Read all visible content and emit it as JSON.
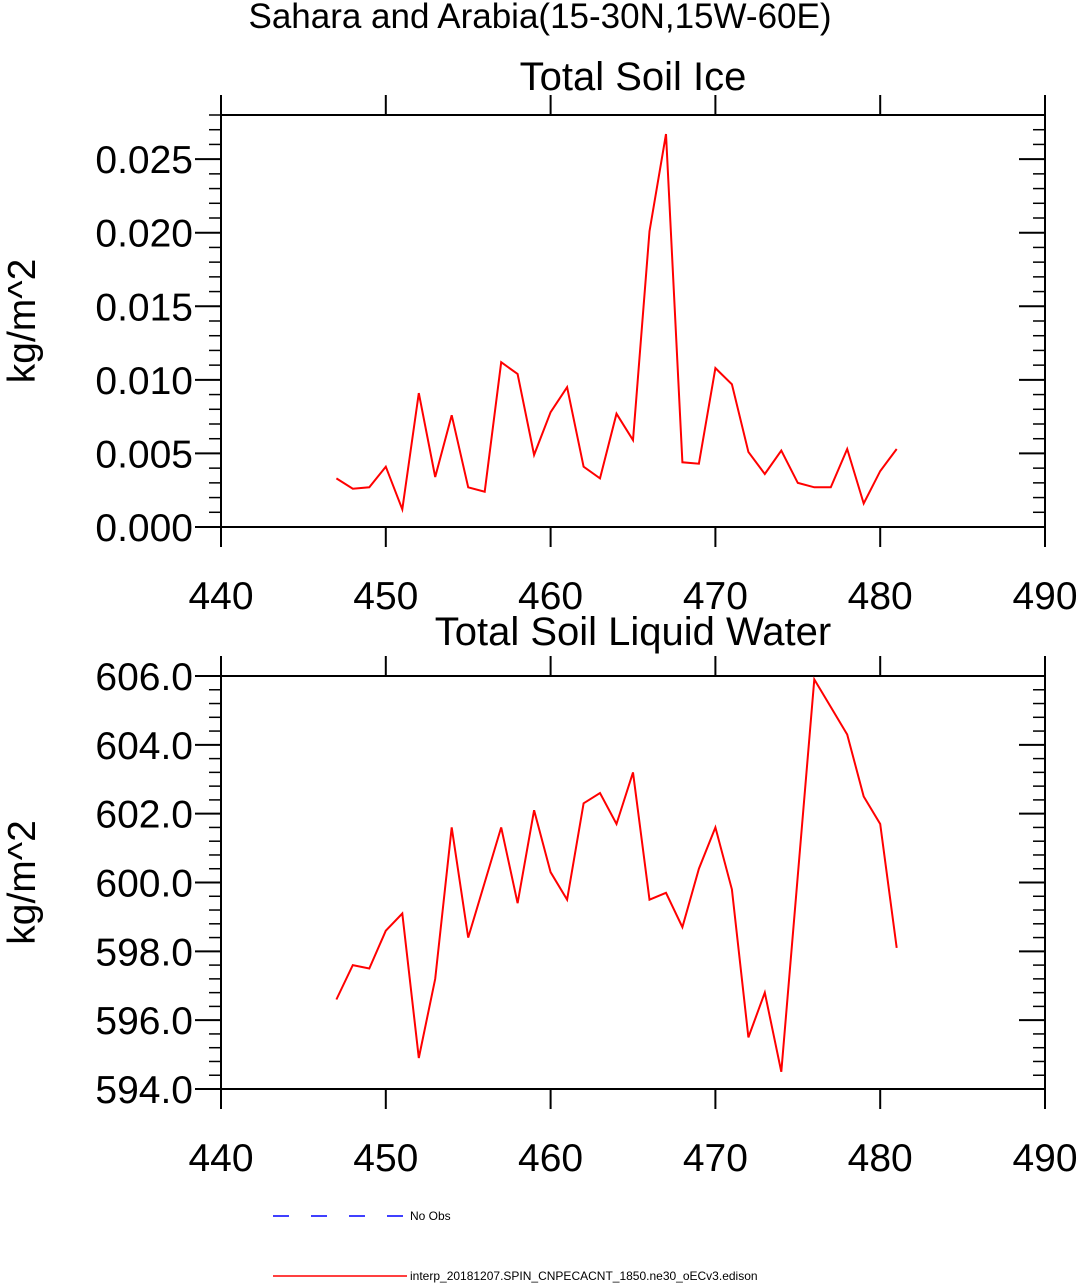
{
  "figure_title": "Sahara and Arabia(15-30N,15W-60E)",
  "colors": {
    "model": "#ff0000",
    "obs": "#0000ff",
    "axes": "#000000"
  },
  "legend": {
    "obs_label": "No Obs",
    "model_label": "interp_20181207.SPIN_CNPECACNT_1850.ne30_oECv3.edison"
  },
  "chart_data": [
    {
      "type": "line",
      "title": "Total Soil Ice",
      "xlabel": "",
      "ylabel": "kg/m^2",
      "xlim": [
        440,
        490
      ],
      "ylim": [
        0,
        0.028
      ],
      "x_ticks": [
        440,
        450,
        460,
        470,
        480,
        490
      ],
      "x_tick_labels": [
        "440",
        "450",
        "460",
        "470",
        "480",
        "490"
      ],
      "y_ticks": [
        0,
        0.005,
        0.01,
        0.015,
        0.02,
        0.025
      ],
      "y_tick_labels": [
        "0.000",
        "0.005",
        "0.010",
        "0.015",
        "0.020",
        "0.025"
      ],
      "series": [
        {
          "name": "interp_20181207.SPIN_CNPECACNT_1850.ne30_oECv3.edison",
          "x": [
            447,
            448,
            449,
            450,
            451,
            452,
            453,
            454,
            455,
            456,
            457,
            458,
            459,
            460,
            461,
            462,
            463,
            464,
            465,
            466,
            467,
            468,
            469,
            470,
            471,
            472,
            473,
            474,
            475,
            476,
            477,
            478,
            479,
            480,
            481
          ],
          "values": [
            0.0033,
            0.0026,
            0.0027,
            0.0041,
            0.0012,
            0.0091,
            0.0034,
            0.0076,
            0.0027,
            0.0024,
            0.0112,
            0.0104,
            0.0049,
            0.0078,
            0.0095,
            0.0041,
            0.0033,
            0.0077,
            0.0059,
            0.0201,
            0.0267,
            0.0044,
            0.0043,
            0.0108,
            0.0097,
            0.0051,
            0.0036,
            0.0052,
            0.003,
            0.0027,
            0.0027,
            0.0053,
            0.0016,
            0.0038,
            0.0053
          ]
        }
      ]
    },
    {
      "type": "line",
      "title": "Total Soil Liquid Water",
      "xlabel": "",
      "ylabel": "kg/m^2",
      "xlim": [
        440,
        490
      ],
      "ylim": [
        594,
        606
      ],
      "x_ticks": [
        440,
        450,
        460,
        470,
        480,
        490
      ],
      "x_tick_labels": [
        "440",
        "450",
        "460",
        "470",
        "480",
        "490"
      ],
      "y_ticks": [
        594,
        596,
        598,
        600,
        602,
        604,
        606
      ],
      "y_tick_labels": [
        "594.0",
        "596.0",
        "598.0",
        "600.0",
        "602.0",
        "604.0",
        "606.0"
      ],
      "series": [
        {
          "name": "interp_20181207.SPIN_CNPECACNT_1850.ne30_oECv3.edison",
          "x": [
            447,
            448,
            449,
            450,
            451,
            452,
            453,
            454,
            455,
            456,
            457,
            458,
            459,
            460,
            461,
            462,
            463,
            464,
            465,
            466,
            467,
            468,
            469,
            470,
            471,
            472,
            473,
            474,
            475,
            476,
            477,
            478,
            479,
            480,
            481
          ],
          "values": [
            596.6,
            597.6,
            597.5,
            598.6,
            599.1,
            594.9,
            597.2,
            601.6,
            598.4,
            600.0,
            601.6,
            599.4,
            602.1,
            600.3,
            599.5,
            602.3,
            602.6,
            601.7,
            603.2,
            599.5,
            599.7,
            598.7,
            600.4,
            601.6,
            599.8,
            595.5,
            596.8,
            594.5,
            600.2,
            605.9,
            605.1,
            604.3,
            602.5,
            601.7,
            598.1
          ]
        }
      ]
    }
  ]
}
